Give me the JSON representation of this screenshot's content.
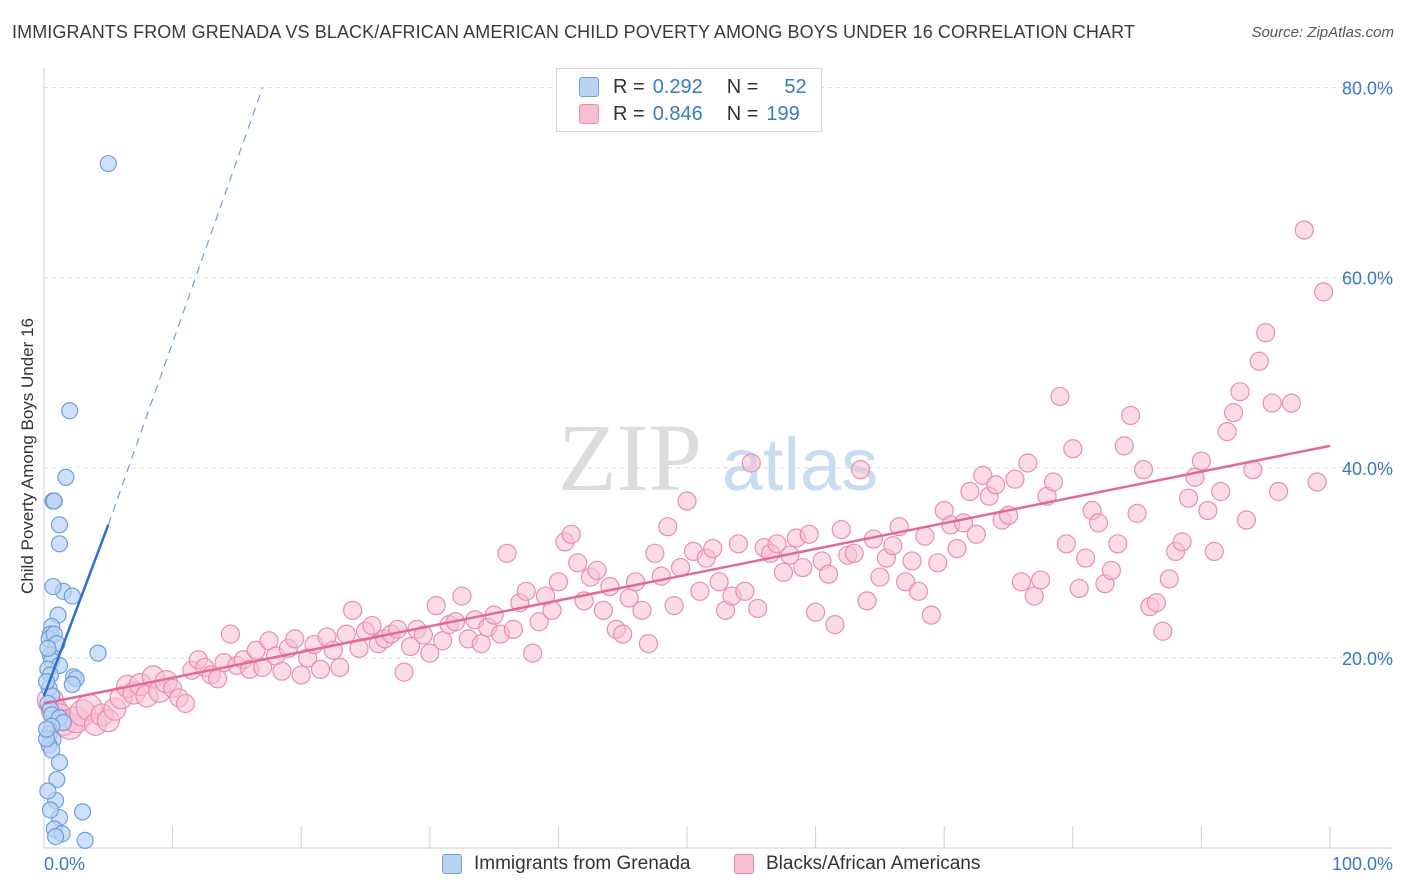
{
  "title": "IMMIGRANTS FROM GRENADA VS BLACK/AFRICAN AMERICAN CHILD POVERTY AMONG BOYS UNDER 16 CORRELATION CHART",
  "source": "Source: ZipAtlas.com",
  "watermark": {
    "zip": "ZIP",
    "atlas": "atlas"
  },
  "legend": {
    "series1": {
      "r_label": "R =",
      "r_value": "0.292",
      "n_label": "N =",
      "n_value": "52"
    },
    "series2": {
      "r_label": "R =",
      "r_value": "0.846",
      "n_label": "N =",
      "n_value": "199"
    }
  },
  "colors": {
    "blue_fill": "#b9d3f3",
    "blue_stroke": "#6f9fdc",
    "blue_line": "#2f6fd0",
    "pink_fill": "#f7c0d2",
    "pink_stroke": "#e88fae",
    "pink_line": "#e06b96",
    "grid": "#dddddd",
    "tick_text": "#3a78c2"
  },
  "chart_data": {
    "type": "scatter",
    "title": "IMMIGRANTS FROM GRENADA VS BLACK/AFRICAN AMERICAN CHILD POVERTY AMONG BOYS UNDER 16 CORRELATION CHART",
    "ylabel": "Child Poverty Among Boys Under 16",
    "xlabel": "",
    "xlim": [
      0,
      100
    ],
    "ylim": [
      0,
      80
    ],
    "x_tick_labels": [
      "0.0%",
      "100.0%"
    ],
    "y_ticks": [
      20,
      40,
      60,
      80
    ],
    "y_tick_labels": [
      "20.0%",
      "40.0%",
      "60.0%",
      "80.0%"
    ],
    "series": [
      {
        "name": "Immigrants from Grenada",
        "color": "blue",
        "r": 0.292,
        "n": 52,
        "trend": {
          "x0": 0,
          "y0": 16,
          "x1": 5,
          "y1": 34,
          "dash_x1": 17,
          "dash_y1": 80
        },
        "points": [
          [
            5,
            72
          ],
          [
            2,
            46
          ],
          [
            1.7,
            39
          ],
          [
            0.7,
            36.5
          ],
          [
            0.8,
            36.5
          ],
          [
            1.2,
            34
          ],
          [
            1.2,
            32
          ],
          [
            1.5,
            27
          ],
          [
            2.2,
            26.5
          ],
          [
            0.7,
            27.5
          ],
          [
            1.1,
            24.5
          ],
          [
            0.6,
            23.3
          ],
          [
            0.5,
            22.5
          ],
          [
            0.4,
            22
          ],
          [
            0.8,
            22.5
          ],
          [
            1.0,
            21.5
          ],
          [
            0.5,
            20.3
          ],
          [
            0.6,
            19.7
          ],
          [
            1.2,
            19.2
          ],
          [
            0.3,
            18.8
          ],
          [
            0.5,
            18.2
          ],
          [
            4.2,
            20.5
          ],
          [
            2.3,
            18.0
          ],
          [
            2.5,
            17.8
          ],
          [
            2.2,
            17.2
          ],
          [
            0.4,
            16.8
          ],
          [
            0.6,
            16.0
          ],
          [
            0.3,
            15.2
          ],
          [
            0.5,
            14.6
          ],
          [
            0.6,
            14.0
          ],
          [
            1.2,
            13.7
          ],
          [
            1.5,
            13.2
          ],
          [
            0.6,
            12.8
          ],
          [
            0.4,
            12.0
          ],
          [
            0.7,
            11.4
          ],
          [
            0.4,
            10.8
          ],
          [
            0.6,
            10.3
          ],
          [
            1.2,
            9.0
          ],
          [
            1.0,
            7.2
          ],
          [
            0.9,
            5.0
          ],
          [
            3.0,
            3.8
          ],
          [
            1.2,
            3.2
          ],
          [
            0.8,
            2.0
          ],
          [
            1.4,
            1.5
          ],
          [
            0.9,
            1.2
          ],
          [
            3.2,
            0.8
          ],
          [
            0.3,
            6.0
          ],
          [
            0.5,
            4.0
          ],
          [
            0.2,
            11.5
          ],
          [
            0.2,
            17.5
          ],
          [
            0.3,
            21.0
          ],
          [
            0.2,
            12.5
          ]
        ]
      },
      {
        "name": "Blacks/African Americans",
        "color": "pink",
        "r": 0.846,
        "n": 199,
        "trend": {
          "x0": 0,
          "y0": 15.2,
          "x1": 100,
          "y1": 42.3
        },
        "points": [
          [
            0.5,
            15.5
          ],
          [
            0.8,
            14.5
          ],
          [
            1.2,
            13.8
          ],
          [
            1.5,
            13.2
          ],
          [
            2.0,
            12.8
          ],
          [
            2.5,
            13.5
          ],
          [
            3.0,
            14.2
          ],
          [
            3.5,
            14.8
          ],
          [
            4.0,
            13.0
          ],
          [
            4.5,
            14.0
          ],
          [
            5.0,
            13.4
          ],
          [
            5.5,
            14.6
          ],
          [
            6.0,
            15.8
          ],
          [
            6.5,
            17.0
          ],
          [
            7.0,
            16.3
          ],
          [
            7.5,
            17.2
          ],
          [
            8.0,
            16.0
          ],
          [
            8.5,
            18.0
          ],
          [
            9.0,
            16.5
          ],
          [
            9.5,
            17.5
          ],
          [
            10.0,
            16.8
          ],
          [
            10.5,
            15.8
          ],
          [
            11.0,
            15.2
          ],
          [
            11.5,
            18.7
          ],
          [
            12.0,
            19.8
          ],
          [
            12.5,
            19.0
          ],
          [
            13.0,
            18.2
          ],
          [
            13.5,
            17.8
          ],
          [
            14.0,
            19.5
          ],
          [
            14.5,
            22.5
          ],
          [
            15.0,
            19.2
          ],
          [
            15.5,
            19.8
          ],
          [
            16.0,
            18.8
          ],
          [
            16.5,
            20.8
          ],
          [
            17.0,
            19.0
          ],
          [
            17.5,
            21.8
          ],
          [
            18.0,
            20.2
          ],
          [
            18.5,
            18.6
          ],
          [
            19.0,
            21.0
          ],
          [
            19.5,
            22.0
          ],
          [
            20.0,
            18.2
          ],
          [
            20.5,
            20.0
          ],
          [
            21.0,
            21.4
          ],
          [
            21.5,
            18.8
          ],
          [
            22.0,
            22.2
          ],
          [
            22.5,
            20.8
          ],
          [
            23.0,
            19.0
          ],
          [
            23.5,
            22.5
          ],
          [
            24.0,
            25.0
          ],
          [
            24.5,
            21.0
          ],
          [
            25.0,
            22.8
          ],
          [
            25.5,
            23.4
          ],
          [
            26.0,
            21.5
          ],
          [
            26.5,
            22.0
          ],
          [
            27.0,
            22.5
          ],
          [
            27.5,
            23.0
          ],
          [
            28.0,
            18.5
          ],
          [
            28.5,
            21.2
          ],
          [
            29.0,
            23.0
          ],
          [
            29.5,
            22.4
          ],
          [
            30.0,
            20.5
          ],
          [
            30.5,
            25.5
          ],
          [
            31.0,
            21.8
          ],
          [
            31.5,
            23.5
          ],
          [
            32.0,
            23.8
          ],
          [
            32.5,
            26.5
          ],
          [
            33.0,
            22.0
          ],
          [
            33.5,
            24.0
          ],
          [
            34.0,
            21.5
          ],
          [
            34.5,
            23.2
          ],
          [
            35.0,
            24.5
          ],
          [
            35.5,
            22.5
          ],
          [
            36.0,
            31.0
          ],
          [
            36.5,
            23.0
          ],
          [
            37.0,
            25.8
          ],
          [
            37.5,
            27.0
          ],
          [
            38.0,
            20.5
          ],
          [
            38.5,
            23.8
          ],
          [
            39.0,
            26.5
          ],
          [
            39.5,
            25.0
          ],
          [
            40.0,
            28.0
          ],
          [
            40.5,
            32.2
          ],
          [
            41.0,
            33.0
          ],
          [
            41.5,
            30.0
          ],
          [
            42.0,
            26.0
          ],
          [
            42.5,
            28.5
          ],
          [
            43.0,
            29.2
          ],
          [
            43.5,
            25.0
          ],
          [
            44.0,
            27.5
          ],
          [
            44.5,
            23.0
          ],
          [
            45.0,
            22.5
          ],
          [
            45.5,
            26.3
          ],
          [
            46.0,
            28.0
          ],
          [
            46.5,
            25.0
          ],
          [
            47.0,
            21.5
          ],
          [
            47.5,
            31.0
          ],
          [
            48.0,
            28.6
          ],
          [
            48.5,
            33.8
          ],
          [
            49.0,
            25.5
          ],
          [
            49.5,
            29.5
          ],
          [
            50.0,
            36.5
          ],
          [
            50.5,
            31.2
          ],
          [
            51.0,
            27.0
          ],
          [
            51.5,
            30.5
          ],
          [
            52.0,
            31.5
          ],
          [
            52.5,
            28.0
          ],
          [
            53.0,
            25.0
          ],
          [
            53.5,
            26.5
          ],
          [
            54.0,
            32.0
          ],
          [
            54.5,
            27.0
          ],
          [
            55.0,
            40.5
          ],
          [
            55.5,
            25.2
          ],
          [
            56.0,
            31.6
          ],
          [
            56.5,
            31.0
          ],
          [
            57.0,
            32.0
          ],
          [
            57.5,
            29.0
          ],
          [
            58.0,
            30.8
          ],
          [
            58.5,
            32.6
          ],
          [
            59.0,
            29.5
          ],
          [
            59.5,
            33.0
          ],
          [
            60.0,
            24.8
          ],
          [
            60.5,
            30.2
          ],
          [
            61.0,
            28.8
          ],
          [
            61.5,
            23.5
          ],
          [
            62.0,
            33.5
          ],
          [
            62.5,
            30.8
          ],
          [
            63.0,
            31.0
          ],
          [
            63.5,
            39.8
          ],
          [
            64.0,
            26.0
          ],
          [
            64.5,
            32.5
          ],
          [
            65.0,
            28.5
          ],
          [
            65.5,
            30.5
          ],
          [
            66.0,
            31.8
          ],
          [
            66.5,
            33.8
          ],
          [
            67.0,
            28.0
          ],
          [
            67.5,
            30.2
          ],
          [
            68.0,
            27.0
          ],
          [
            68.5,
            32.8
          ],
          [
            69.0,
            24.5
          ],
          [
            69.5,
            30.0
          ],
          [
            70.0,
            35.5
          ],
          [
            70.5,
            34.0
          ],
          [
            71.0,
            31.5
          ],
          [
            71.5,
            34.2
          ],
          [
            72.0,
            37.5
          ],
          [
            72.5,
            33.0
          ],
          [
            73.0,
            39.2
          ],
          [
            73.5,
            37.0
          ],
          [
            74.0,
            38.2
          ],
          [
            74.5,
            34.5
          ],
          [
            75.0,
            35.0
          ],
          [
            75.5,
            38.8
          ],
          [
            76.0,
            28.0
          ],
          [
            76.5,
            40.5
          ],
          [
            77.0,
            26.5
          ],
          [
            77.5,
            28.2
          ],
          [
            78.0,
            37.0
          ],
          [
            78.5,
            38.5
          ],
          [
            79.0,
            47.5
          ],
          [
            79.5,
            32.0
          ],
          [
            80.0,
            42.0
          ],
          [
            80.5,
            27.3
          ],
          [
            81.0,
            30.5
          ],
          [
            81.5,
            35.5
          ],
          [
            82.0,
            34.2
          ],
          [
            82.5,
            27.8
          ],
          [
            83.0,
            29.2
          ],
          [
            83.5,
            32.0
          ],
          [
            84.0,
            42.3
          ],
          [
            84.5,
            45.5
          ],
          [
            85.0,
            35.2
          ],
          [
            85.5,
            39.8
          ],
          [
            86.0,
            25.4
          ],
          [
            86.5,
            25.8
          ],
          [
            87.0,
            22.8
          ],
          [
            87.5,
            28.3
          ],
          [
            88.0,
            31.2
          ],
          [
            88.5,
            32.2
          ],
          [
            89.0,
            36.8
          ],
          [
            89.5,
            39.0
          ],
          [
            90.0,
            40.7
          ],
          [
            90.5,
            35.5
          ],
          [
            91.0,
            31.2
          ],
          [
            91.5,
            37.5
          ],
          [
            92.0,
            43.8
          ],
          [
            92.5,
            45.8
          ],
          [
            93.0,
            48.0
          ],
          [
            93.5,
            34.5
          ],
          [
            94.0,
            39.8
          ],
          [
            94.5,
            51.2
          ],
          [
            95.0,
            54.2
          ],
          [
            95.5,
            46.8
          ],
          [
            97.0,
            46.8
          ],
          [
            98.0,
            65.0
          ],
          [
            99.0,
            38.5
          ],
          [
            99.5,
            58.5
          ],
          [
            96.0,
            37.5
          ]
        ]
      }
    ]
  }
}
